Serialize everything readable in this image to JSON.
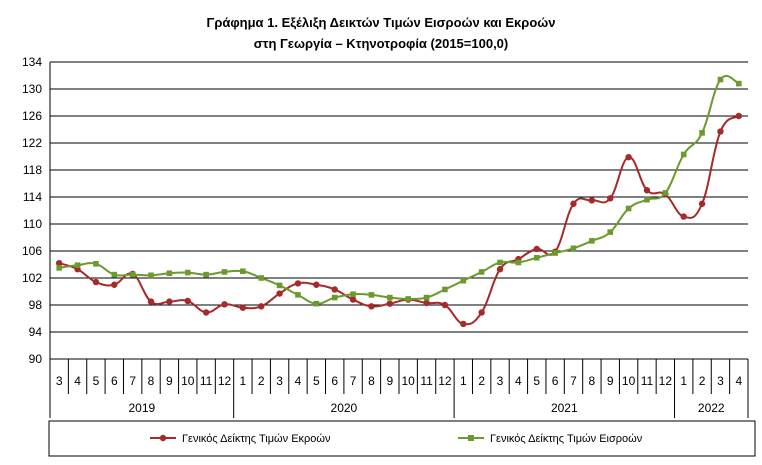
{
  "chart_data": {
    "type": "line",
    "title_line1": "Γράφημα 1. Εξέλιξη Δεικτών Τιμών Εισροών και Εκροών",
    "title_line2": "στη Γεωργία – Κτηνοτροφία (2015=100,0)",
    "ylim": [
      90,
      134
    ],
    "yticks": [
      90,
      94,
      98,
      102,
      106,
      110,
      114,
      118,
      122,
      126,
      130,
      134
    ],
    "months": [
      "3",
      "4",
      "5",
      "6",
      "7",
      "8",
      "9",
      "10",
      "11",
      "12",
      "1",
      "2",
      "3",
      "4",
      "5",
      "6",
      "7",
      "8",
      "9",
      "10",
      "11",
      "12",
      "1",
      "2",
      "3",
      "4",
      "5",
      "6",
      "7",
      "8",
      "9",
      "10",
      "11",
      "12",
      "1",
      "2",
      "3",
      "4"
    ],
    "years": [
      {
        "label": "2019",
        "start": 0,
        "count": 10
      },
      {
        "label": "2020",
        "start": 10,
        "count": 12
      },
      {
        "label": "2021",
        "start": 22,
        "count": 12
      },
      {
        "label": "2022",
        "start": 34,
        "count": 4
      }
    ],
    "series": [
      {
        "name": "Γενικός Δείκτης Τιμών Εκροών",
        "color": "#a52a2a",
        "values": [
          104.2,
          103.3,
          101.4,
          101.0,
          102.6,
          98.5,
          98.5,
          98.6,
          96.9,
          98.1,
          97.6,
          97.8,
          99.7,
          101.2,
          101.0,
          100.3,
          98.8,
          97.8,
          98.2,
          98.8,
          98.3,
          98.0,
          95.2,
          96.9,
          103.3,
          104.8,
          106.3,
          105.9,
          113.0,
          113.5,
          113.8,
          119.9,
          115.0,
          114.4,
          111.1,
          113.0,
          123.7,
          126.0
        ]
      },
      {
        "name": "Γενικός Δείκτης Τιμών Εισροών",
        "color": "#6b9a2e",
        "values": [
          103.5,
          103.9,
          104.1,
          102.5,
          102.5,
          102.4,
          102.7,
          102.8,
          102.5,
          102.9,
          103.0,
          102.0,
          100.9,
          99.5,
          98.2,
          99.1,
          99.6,
          99.5,
          99.1,
          98.9,
          99.1,
          100.3,
          101.6,
          102.9,
          104.3,
          104.3,
          105.0,
          105.7,
          106.4,
          107.5,
          108.8,
          112.3,
          113.6,
          114.6,
          120.3,
          123.5,
          131.4,
          130.8
        ]
      }
    ]
  }
}
